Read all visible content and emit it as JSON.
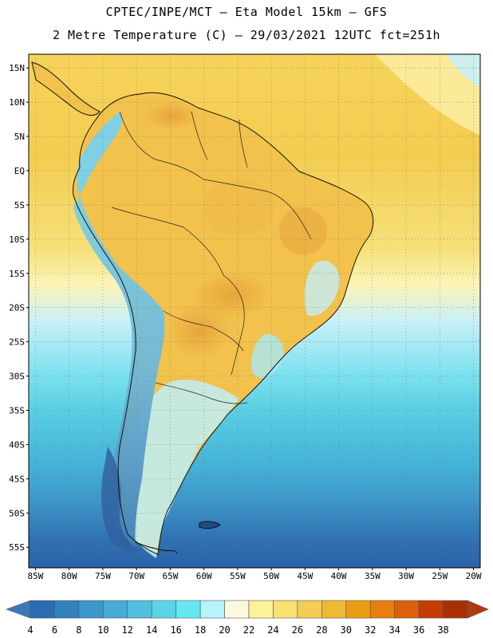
{
  "header": {
    "line1": "CPTEC/INPE/MCT –  Eta Model 15km – GFS",
    "line2": "2 Metre Temperature (C) – 29/03/2021 12UTC fct=251h"
  },
  "map": {
    "lat_labels": [
      "15N",
      "10N",
      "5N",
      "EQ",
      "5S",
      "10S",
      "15S",
      "20S",
      "25S",
      "30S",
      "35S",
      "40S",
      "45S",
      "50S",
      "55S"
    ],
    "lon_labels": [
      "85W",
      "80W",
      "75W",
      "70W",
      "65W",
      "60W",
      "55W",
      "50W",
      "45W",
      "40W",
      "35W",
      "30W",
      "25W",
      "20W"
    ],
    "lat_values": [
      15,
      10,
      5,
      0,
      -5,
      -10,
      -15,
      -20,
      -25,
      -30,
      -35,
      -40,
      -45,
      -50,
      -55
    ],
    "lon_values": [
      -85,
      -80,
      -75,
      -70,
      -65,
      -60,
      -55,
      -50,
      -45,
      -40,
      -35,
      -30,
      -25,
      -20
    ],
    "lat_range": [
      -58,
      17
    ],
    "lon_range": [
      -86,
      -19
    ]
  },
  "colorbar": {
    "labels": [
      "4",
      "6",
      "8",
      "10",
      "12",
      "14",
      "16",
      "18",
      "20",
      "22",
      "24",
      "26",
      "28",
      "30",
      "32",
      "34",
      "36",
      "38"
    ],
    "colors": [
      "#2b6cb0",
      "#3282be",
      "#3c98cb",
      "#46acd6",
      "#52bfdf",
      "#5cd4e8",
      "#66e8f2",
      "#b8f2fb",
      "#fff8e0",
      "#fdf29a",
      "#f8e172",
      "#f3cd55",
      "#eeb935",
      "#e99d14",
      "#e47f10",
      "#dd5e0b",
      "#c43c06",
      "#a93006"
    ],
    "low_color": "#3a78b8",
    "high_color": "#b03a10"
  }
}
